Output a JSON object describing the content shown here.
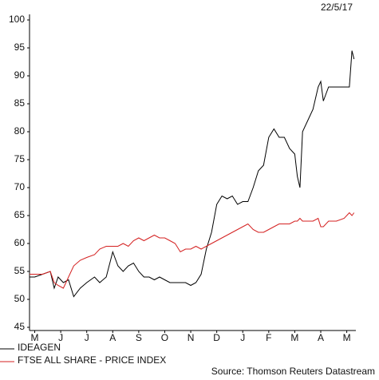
{
  "chart_data": {
    "type": "line",
    "title": "22/5/17",
    "source": "Source: Thomson Reuters Datastream",
    "x": [
      -0.2,
      0,
      0.3,
      0.6,
      0.75,
      0.9,
      1.1,
      1.3,
      1.5,
      1.75,
      2,
      2.3,
      2.5,
      2.75,
      3,
      3.2,
      3.4,
      3.6,
      3.8,
      4,
      4.2,
      4.4,
      4.6,
      4.8,
      5,
      5.2,
      5.4,
      5.6,
      5.8,
      6,
      6.2,
      6.4,
      6.6,
      6.8,
      7,
      7.2,
      7.4,
      7.6,
      7.8,
      8,
      8.2,
      8.4,
      8.6,
      8.8,
      9,
      9.2,
      9.4,
      9.6,
      9.8,
      10,
      10.1,
      10.2,
      10.3,
      10.5,
      10.7,
      10.9,
      11,
      11.1,
      11.3,
      11.6,
      11.9,
      12.1,
      12.2,
      12.28
    ],
    "series": [
      {
        "name": "IDEAGEN",
        "color": "#000000",
        "values": [
          54,
          54,
          54.5,
          55,
          52,
          54,
          53,
          53.5,
          50.5,
          52,
          53,
          54,
          53,
          54,
          58.5,
          56,
          55,
          56,
          56.5,
          55,
          54,
          54,
          53.5,
          54,
          53.5,
          53,
          53,
          53,
          53,
          52.5,
          53,
          54.5,
          59,
          62,
          67,
          68.5,
          68,
          68.5,
          67,
          67.5,
          67.5,
          70,
          73,
          74,
          79,
          80.5,
          79,
          79,
          77,
          76,
          72,
          70,
          80,
          82,
          84,
          88,
          89,
          85.5,
          88,
          88,
          88,
          88,
          94.5,
          93
        ]
      },
      {
        "name": "FTSE ALL SHARE - PRICE INDEX",
        "color": "#d42020",
        "values": [
          54.5,
          54.5,
          54.5,
          55,
          53,
          52.5,
          52,
          54,
          56,
          57,
          57.5,
          58,
          59,
          59.5,
          59.5,
          59.5,
          60,
          59.5,
          60.5,
          61,
          60.5,
          61,
          61.5,
          61,
          61,
          60.5,
          60,
          58.5,
          59,
          59,
          59.5,
          59,
          59.5,
          60,
          60.5,
          61,
          61.5,
          62,
          62.5,
          63,
          63.5,
          62.5,
          62,
          62,
          62.5,
          63,
          63.5,
          63.5,
          63.5,
          64,
          64,
          64.5,
          64,
          64,
          64,
          64.5,
          63,
          63,
          64,
          64,
          64.5,
          65.5,
          65,
          65.5
        ]
      }
    ],
    "xlim": [
      -0.2,
      12.35
    ],
    "xticks": [
      {
        "value": 0,
        "label": "M"
      },
      {
        "value": 1,
        "label": "J"
      },
      {
        "value": 2,
        "label": "J"
      },
      {
        "value": 3,
        "label": "A"
      },
      {
        "value": 4,
        "label": "S"
      },
      {
        "value": 5,
        "label": "O"
      },
      {
        "value": 6,
        "label": "N"
      },
      {
        "value": 7,
        "label": "D"
      },
      {
        "value": 8,
        "label": "J"
      },
      {
        "value": 9,
        "label": "F"
      },
      {
        "value": 10,
        "label": "M"
      },
      {
        "value": 11,
        "label": "A"
      },
      {
        "value": 12,
        "label": "M"
      }
    ],
    "ylim": [
      44.5,
      100.5
    ],
    "yticks": [
      45,
      50,
      55,
      60,
      65,
      70,
      75,
      80,
      85,
      90,
      95,
      100
    ],
    "grid": false
  }
}
